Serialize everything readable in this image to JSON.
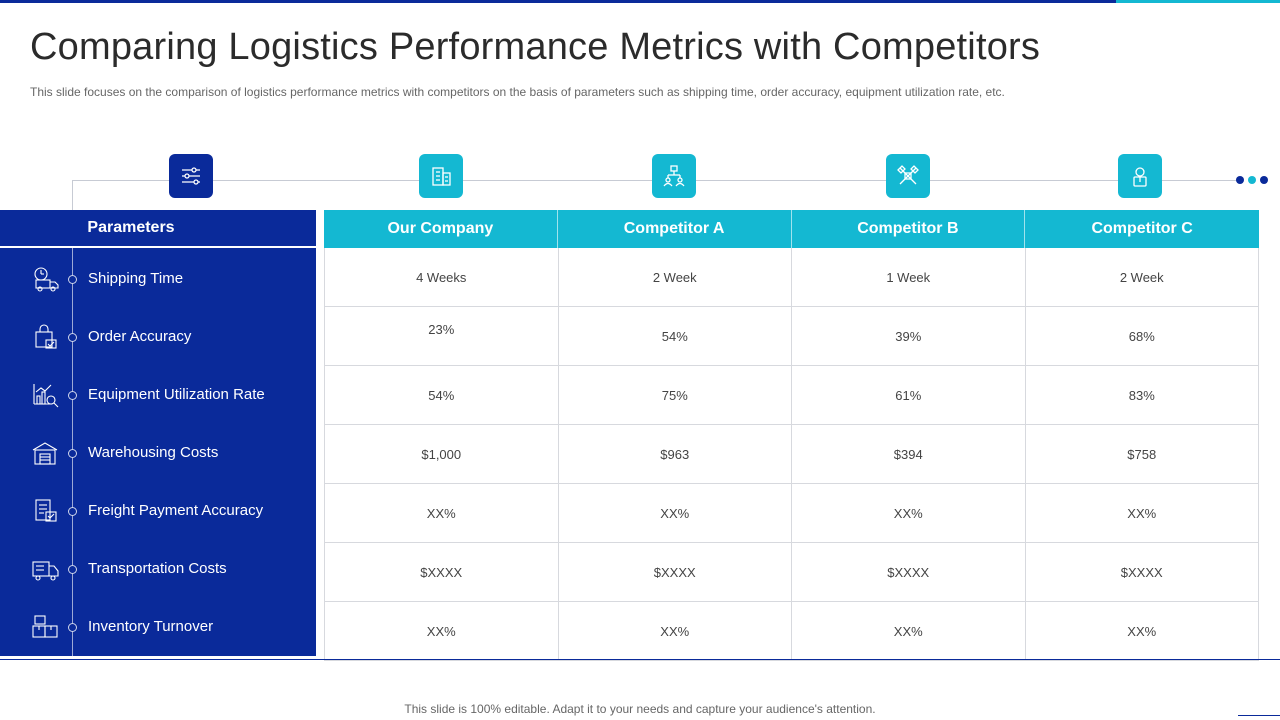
{
  "header": {
    "title": "Comparing Logistics Performance Metrics with Competitors",
    "subtitle": "This slide focuses on the comparison of logistics performance metrics with competitors on the basis of parameters such as shipping time, order accuracy, equipment utilization rate, etc."
  },
  "colors": {
    "navy": "#0a2a9a",
    "cyan": "#14b8d2"
  },
  "top_icons": [
    {
      "icon": "sliders-icon",
      "color": "navy"
    },
    {
      "icon": "building-icon",
      "color": "cyan"
    },
    {
      "icon": "hierarchy-icon",
      "color": "cyan"
    },
    {
      "icon": "crossed-tools-icon",
      "color": "cyan"
    },
    {
      "icon": "employee-icon",
      "color": "cyan"
    }
  ],
  "parameters": {
    "header": "Parameters",
    "items": [
      {
        "label": "Shipping Time",
        "icon": "delivery-clock-icon"
      },
      {
        "label": "Order Accuracy",
        "icon": "shopping-bag-check-icon"
      },
      {
        "label": "Equipment Utilization Rate",
        "icon": "chart-magnifier-icon"
      },
      {
        "label": "Warehousing Costs",
        "icon": "warehouse-icon"
      },
      {
        "label": "Freight Payment Accuracy",
        "icon": "invoice-icon"
      },
      {
        "label": "Transportation Costs",
        "icon": "truck-icon"
      },
      {
        "label": "Inventory Turnover",
        "icon": "boxes-icon"
      }
    ]
  },
  "table": {
    "columns": [
      "Our Company",
      "Competitor A",
      "Competitor B",
      "Competitor C"
    ],
    "rows": [
      [
        "4 Weeks",
        "2 Week",
        "1 Week",
        "2 Week"
      ],
      [
        "23%",
        "54%",
        "39%",
        "68%"
      ],
      [
        "54%",
        "75%",
        "61%",
        "83%"
      ],
      [
        "$1,000",
        "$963",
        "$394",
        "$758"
      ],
      [
        "XX%",
        "XX%",
        "XX%",
        "XX%"
      ],
      [
        "$XXXX",
        "$XXXX",
        "$XXXX",
        "$XXXX"
      ],
      [
        "XX%",
        "XX%",
        "XX%",
        "XX%"
      ]
    ]
  },
  "footer": {
    "text": "This slide is 100% editable. Adapt it to your needs and capture your audience's attention."
  }
}
